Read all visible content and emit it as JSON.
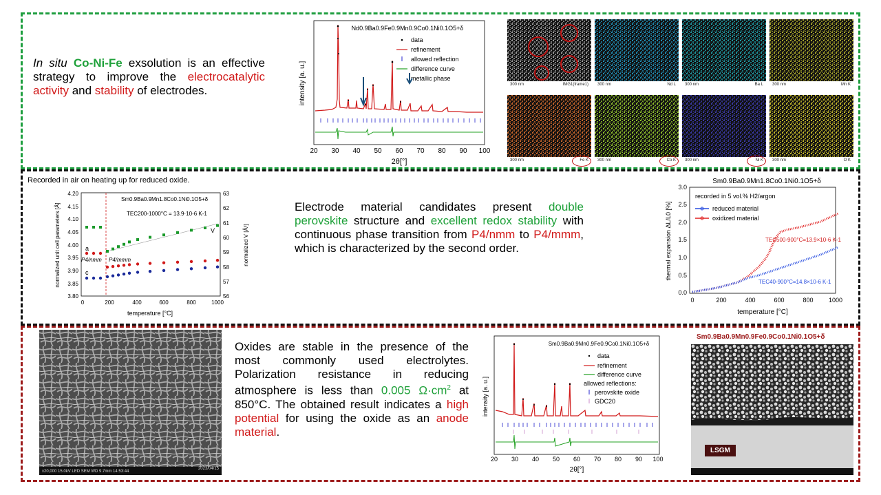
{
  "panel1": {
    "text_italic": "In situ",
    "text_highlight": "Co-Ni-Fe",
    "text_mid": " exsolution is an effective strategy to improve the ",
    "text_red1": "electrocatalytic activity",
    "text_and": " and ",
    "text_red2": "stability",
    "text_end": " of electrodes.",
    "xrd": {
      "formula": "Nd0.9Ba0.9Fe0.9Mn0.9Co0.1Ni0.1O5+δ",
      "legend": [
        "data",
        "refinement",
        "allowed reflection",
        "difference curve",
        "metallic phase"
      ],
      "ylabel": "intensity [a. u.]",
      "xlabel": "2θ[°]",
      "xticks": [
        "20",
        "30",
        "40",
        "50",
        "60",
        "70",
        "80",
        "90",
        "100"
      ]
    },
    "eds": {
      "scale": "300 nm",
      "labels": [
        "IMG1(frame1)",
        "Nd L",
        "Ba L",
        "Mn K",
        "Fe K",
        "Co K",
        "Ni K",
        "O K"
      ],
      "colors": [
        "#9b9b9b",
        "#1f8fb7",
        "#1e9aa4",
        "#a7a42a",
        "#c8662a",
        "#8fbf2b",
        "#3a3aa8",
        "#c4b82a"
      ]
    }
  },
  "panel2": {
    "note": "Recorded in air on heating up for reduced oxide.",
    "text_a": "Electrode material candidates present ",
    "text_green1": "double perovskite",
    "text_b": " structure and ",
    "text_green2": "excellent redox stability",
    "text_c": " with continuous phase transition from ",
    "text_red1": "P4/nmm",
    "text_d": " to ",
    "text_red2": "P4/mmm",
    "text_e": ", which is characterized by the second order.",
    "lattice_chart": {
      "formula": "Sm0.9Ba0.9Mn1.8Co0.1Ni0.1O5+δ",
      "tec": "TEC200-1000°C = 13.9·10-6 K-1",
      "ylabel_left": "normalized unit cell parameters [Å]",
      "ylabel_right": "normalized V [Å³]",
      "xlabel": "temperature [°C]",
      "phase1": "P4/nmm",
      "phase2": "P4/mmm",
      "label_a": "a",
      "label_c": "c",
      "label_v": "V",
      "yticks_left": [
        "3.80",
        "3.85",
        "3.90",
        "3.95",
        "4.00",
        "4.05",
        "4.10",
        "4.15",
        "4.20"
      ],
      "yticks_right": [
        "56",
        "57",
        "58",
        "59",
        "60",
        "61",
        "62",
        "63"
      ],
      "xticks": [
        "0",
        "200",
        "400",
        "600",
        "800",
        "1000"
      ]
    },
    "dilatometry_chart": {
      "title": "Sm0.9Ba0.9Mn1.8Co0.1Ni0.1O5+δ",
      "condition": "recorded in 5 vol.% H2/argon",
      "legend": [
        "reduced material",
        "oxidized material"
      ],
      "tec_ox": "TEC500-900°C=13.9×10-6 K-1",
      "tec_red": "TEC40-900°C=14.8×10-6 K-1",
      "ylabel": "thermal expansion ΔL/L0 [%]",
      "xlabel": "temperature [°C]",
      "yticks": [
        "0.0",
        "0.5",
        "1.0",
        "1.5",
        "2.0",
        "2.5",
        "3.0"
      ],
      "xticks": [
        "0",
        "200",
        "400",
        "600",
        "800",
        "1000"
      ]
    }
  },
  "panel3": {
    "text_a": "Oxides are stable in the presence of the most commonly used electrolytes. Polarization resistance in reducing atmosphere is less than ",
    "text_green": "0.005 Ω·cm",
    "text_green_sup": "2",
    "text_b": " at 850°C. The obtained result indicates a ",
    "text_red1": "high potential",
    "text_c": " for using the oxide as an ",
    "text_red2": "anode material",
    "text_end": ".",
    "sem_bar": "x20,000   15.0kV LED   SEM   WD 9.7mm   14:53:44",
    "sem_date": "2023/04/15",
    "xrd": {
      "formula": "Sm0.9Ba0.9Mn0.9Fe0.9Co0.1Ni0.1O5+δ",
      "legend": [
        "data",
        "refinement",
        "difference curve",
        "allowed reflections:",
        "perovskite oxide",
        "GDC20"
      ],
      "ylabel": "intensity [a. u.]",
      "xlabel": "2θ[°]",
      "xticks": [
        "20",
        "30",
        "40",
        "50",
        "60",
        "70",
        "80",
        "90",
        "100"
      ]
    },
    "cross_section": {
      "title": "Sm0.9Ba0.9Mn0.9Fe0.9Co0.1Ni0.1O5+δ",
      "label": "LSGM"
    }
  }
}
